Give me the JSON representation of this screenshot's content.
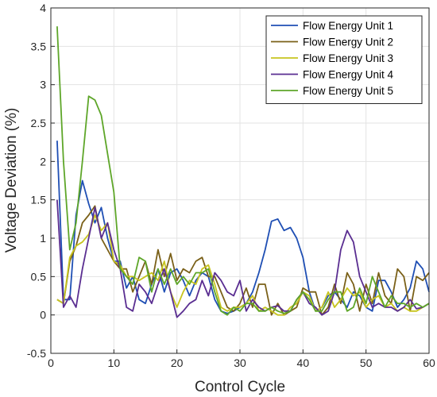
{
  "chart_data": {
    "type": "line",
    "title": "",
    "xlabel": "Control Cycle",
    "ylabel": "Voltage Deviation (%)",
    "xlim": [
      0,
      60
    ],
    "ylim": [
      -0.5,
      4
    ],
    "xticks": [
      "0",
      "10",
      "20",
      "30",
      "40",
      "50",
      "60"
    ],
    "yticks": [
      "-0.5",
      "0",
      "0.5",
      "1",
      "1.5",
      "2",
      "2.5",
      "3",
      "3.5",
      "4"
    ],
    "grid": true,
    "legend_position": "top-right",
    "x": [
      1,
      2,
      3,
      4,
      5,
      6,
      7,
      8,
      9,
      10,
      11,
      12,
      13,
      14,
      15,
      16,
      17,
      18,
      19,
      20,
      21,
      22,
      23,
      24,
      25,
      26,
      27,
      28,
      29,
      30,
      31,
      32,
      33,
      34,
      35,
      36,
      37,
      38,
      39,
      40,
      41,
      42,
      43,
      44,
      45,
      46,
      47,
      48,
      49,
      50,
      51,
      52,
      53,
      54,
      55,
      56,
      57,
      58,
      59,
      60
    ],
    "series": [
      {
        "name": "Flow Energy Unit 1",
        "color": "#1f4fb4",
        "values": [
          2.27,
          0.2,
          0.2,
          1.3,
          1.75,
          1.45,
          1.2,
          1.4,
          1.0,
          0.7,
          0.7,
          0.35,
          0.5,
          0.2,
          0.15,
          0.4,
          0.6,
          0.3,
          0.55,
          0.6,
          0.45,
          0.25,
          0.45,
          0.55,
          0.5,
          0.2,
          0.05,
          0.02,
          0.05,
          0.1,
          0.15,
          0.3,
          0.55,
          0.85,
          1.22,
          1.25,
          1.1,
          1.14,
          1.0,
          0.75,
          0.3,
          0.05,
          0.1,
          0.25,
          0.3,
          0.2,
          0.1,
          0.3,
          0.25,
          0.1,
          0.05,
          0.45,
          0.45,
          0.3,
          0.1,
          0.2,
          0.35,
          0.7,
          0.6,
          0.3
        ]
      },
      {
        "name": "Flow Energy Unit 2",
        "color": "#7a6018",
        "values": [
          0.2,
          0.15,
          0.7,
          0.9,
          1.2,
          1.3,
          1.42,
          1.0,
          0.85,
          0.7,
          0.6,
          0.6,
          0.3,
          0.5,
          0.7,
          0.4,
          0.85,
          0.5,
          0.8,
          0.45,
          0.6,
          0.55,
          0.7,
          0.75,
          0.5,
          0.5,
          0.3,
          0.1,
          0.05,
          0.15,
          0.35,
          0.1,
          0.4,
          0.4,
          0.0,
          0.15,
          0.0,
          0.05,
          0.1,
          0.35,
          0.3,
          0.3,
          0.0,
          0.1,
          0.4,
          0.15,
          0.55,
          0.4,
          0.05,
          0.4,
          0.15,
          0.55,
          0.25,
          0.15,
          0.6,
          0.5,
          0.05,
          0.5,
          0.45,
          0.55
        ]
      },
      {
        "name": "Flow Energy Unit 3",
        "color": "#c7c41f",
        "values": [
          0.2,
          0.15,
          0.75,
          0.9,
          0.95,
          1.05,
          1.3,
          1.1,
          1.2,
          0.7,
          0.65,
          0.5,
          0.5,
          0.45,
          0.5,
          0.55,
          0.45,
          0.7,
          0.3,
          0.1,
          0.3,
          0.45,
          0.4,
          0.6,
          0.65,
          0.4,
          0.1,
          0.05,
          0.1,
          0.1,
          0.15,
          0.25,
          0.05,
          0.1,
          0.05,
          0.0,
          0.0,
          0.1,
          0.15,
          0.3,
          0.25,
          0.05,
          0.1,
          0.3,
          0.1,
          0.2,
          0.35,
          0.25,
          0.3,
          0.1,
          0.2,
          0.25,
          0.1,
          0.15,
          0.05,
          0.1,
          0.05,
          0.05,
          0.1,
          0.15
        ]
      },
      {
        "name": "Flow Energy Unit 4",
        "color": "#5a2e91",
        "values": [
          1.5,
          0.1,
          0.25,
          0.1,
          0.6,
          1.0,
          1.4,
          1.0,
          1.2,
          0.85,
          0.6,
          0.1,
          0.05,
          0.4,
          0.3,
          0.15,
          0.4,
          0.6,
          0.3,
          -0.03,
          0.05,
          0.15,
          0.2,
          0.45,
          0.25,
          0.55,
          0.45,
          0.3,
          0.25,
          0.45,
          0.05,
          0.2,
          0.1,
          0.05,
          0.1,
          0.12,
          0.05,
          0.05,
          0.2,
          0.3,
          0.15,
          0.1,
          0.0,
          0.05,
          0.3,
          0.85,
          1.1,
          0.95,
          0.5,
          0.3,
          0.1,
          0.15,
          0.1,
          0.1,
          0.05,
          0.1,
          0.2,
          0.08,
          0.1,
          0.15
        ]
      },
      {
        "name": "Flow Energy Unit 5",
        "color": "#5ea629",
        "values": [
          3.76,
          2.0,
          0.85,
          1.2,
          2.0,
          2.85,
          2.8,
          2.6,
          2.1,
          1.6,
          0.6,
          0.5,
          0.4,
          0.75,
          0.7,
          0.3,
          0.6,
          0.4,
          0.6,
          0.4,
          0.5,
          0.4,
          0.55,
          0.55,
          0.6,
          0.3,
          0.05,
          0.0,
          0.1,
          0.05,
          0.15,
          0.15,
          0.05,
          0.05,
          0.1,
          0.05,
          0.02,
          0.05,
          0.2,
          0.3,
          0.2,
          0.05,
          0.05,
          0.2,
          0.3,
          0.3,
          0.05,
          0.1,
          0.35,
          0.15,
          0.5,
          0.3,
          0.1,
          0.25,
          0.15,
          0.15,
          0.1,
          0.15,
          0.1,
          0.15
        ]
      }
    ]
  }
}
